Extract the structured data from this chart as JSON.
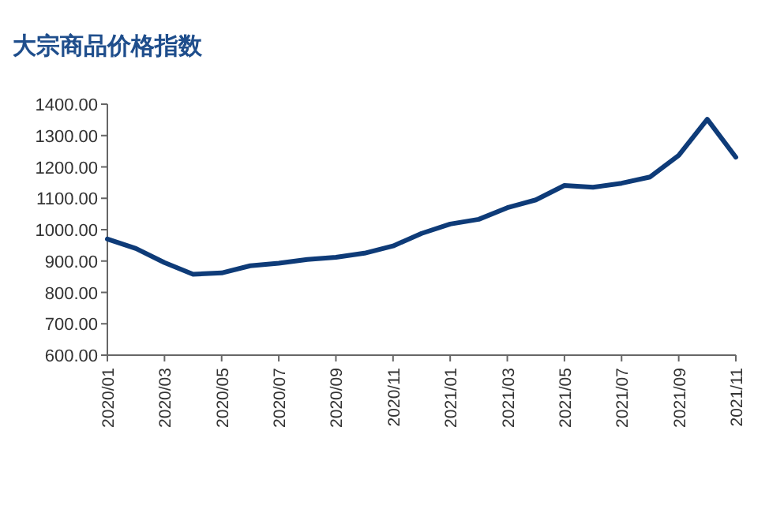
{
  "chart_data": {
    "type": "line",
    "title": "大宗商品价格指数",
    "categories": [
      "2020/01",
      null,
      "2020/03",
      null,
      "2020/05",
      null,
      "2020/07",
      null,
      "2020/09",
      null,
      "2020/11",
      null,
      "2021/01",
      null,
      "2021/03",
      null,
      "2021/05",
      null,
      "2021/07",
      null,
      "2021/09",
      null,
      "2021/11"
    ],
    "series": [
      {
        "color": "#0e3b78",
        "values": [
          970,
          940,
          895,
          858,
          862,
          885,
          893,
          905,
          912,
          925,
          948,
          988,
          1018,
          1033,
          1070,
          1095,
          1141,
          1135,
          1148,
          1168,
          1237,
          1352,
          1231
        ]
      }
    ],
    "ylim": [
      600,
      1400
    ],
    "yticks": [
      {
        "value": 600,
        "label": "600.00"
      },
      {
        "value": 700,
        "label": "700.00"
      },
      {
        "value": 800,
        "label": "800.00"
      },
      {
        "value": 900,
        "label": "900.00"
      },
      {
        "value": 1000,
        "label": "1000.00"
      },
      {
        "value": 1100,
        "label": "1100.00"
      },
      {
        "value": 1200,
        "label": "1200.00"
      },
      {
        "value": 1300,
        "label": "1300.00"
      },
      {
        "value": 1400,
        "label": "1400.00"
      }
    ],
    "grid": false,
    "marker": "none",
    "line_style": "solid"
  }
}
